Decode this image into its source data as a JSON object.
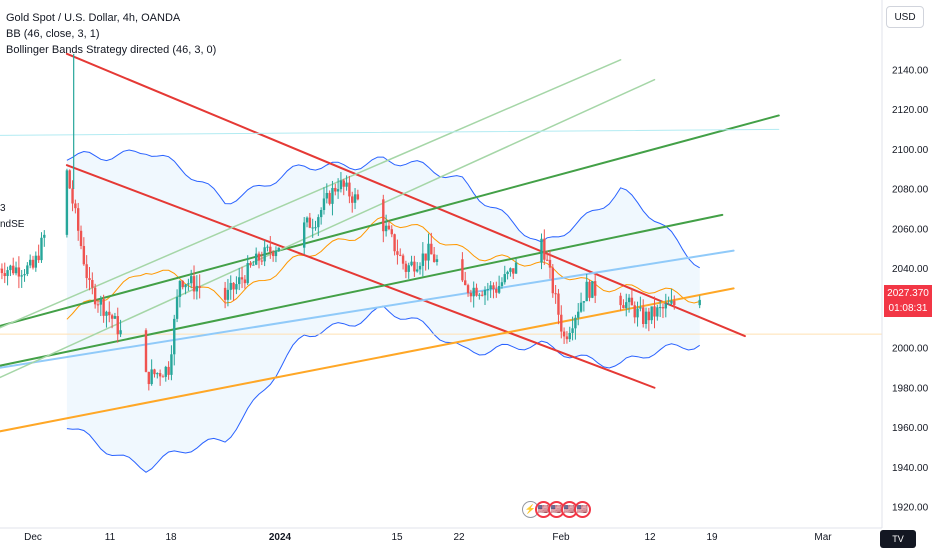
{
  "legend": {
    "symbol": "Gold Spot / U.S. Dollar, 4h, OANDA",
    "bb": "BB (46, close, 3, 1)",
    "strategy": "Bollinger Bands Strategy directed (46, 3, 0)",
    "cut_label_1": "3",
    "cut_label_2": "ndSE"
  },
  "currency_button": "USD",
  "last_price": {
    "value": "2027.370",
    "countdown": "01:08:31",
    "color": "#f23645"
  },
  "events": [
    "⚡",
    "🇺🇸",
    "🇺🇸",
    "🇺🇸",
    "🇺🇸"
  ],
  "colors": {
    "candle_up": "#26a69a",
    "candle_down": "#ef5350",
    "bb_band": "#2962ff",
    "bb_fill": "#e3f2fd",
    "bb_basis": "#ff9800",
    "trend_red": "#e53935",
    "trend_green": "#43a047",
    "trend_light_green": "#a5d6a7",
    "trend_orange": "#ffa726",
    "trend_blue": "#90caf9",
    "trend_cyan": "#b2ebf2",
    "horizontal": "#ffe0b2"
  },
  "chart_data": {
    "type": "candlestick",
    "symbol": "XAUUSD",
    "timeframe": "4h",
    "y_ticks": [
      1920,
      1940,
      1960,
      1980,
      2000,
      2020,
      2040,
      2060,
      2080,
      2100,
      2120,
      2140
    ],
    "ylim": [
      1912,
      2160
    ],
    "x_labels": [
      "Dec",
      "11",
      "18",
      "2024",
      "15",
      "22",
      "Feb",
      "12",
      "19",
      "Mar"
    ],
    "last_price": 2027.37,
    "close_path": [
      {
        "date": "Dec 1",
        "price": 2040
      },
      {
        "date": "Dec 4",
        "price": 2088
      },
      {
        "date": "Dec 6",
        "price": 2030
      },
      {
        "date": "Dec 8",
        "price": 2015
      },
      {
        "date": "Dec 11",
        "price": 1985
      },
      {
        "date": "Dec 13",
        "price": 1990
      },
      {
        "date": "Dec 14",
        "price": 2035
      },
      {
        "date": "Dec 18",
        "price": 2025
      },
      {
        "date": "Dec 21",
        "price": 2045
      },
      {
        "date": "Dec 26",
        "price": 2065
      },
      {
        "date": "Dec 28",
        "price": 2083
      },
      {
        "date": "2024",
        "price": 2062
      },
      {
        "date": "Jan 3",
        "price": 2040
      },
      {
        "date": "Jan 5",
        "price": 2048
      },
      {
        "date": "Jan 8",
        "price": 2030
      },
      {
        "date": "Jan 11",
        "price": 2030
      },
      {
        "date": "Jan 15",
        "price": 2055
      },
      {
        "date": "Jan 17",
        "price": 2005
      },
      {
        "date": "Jan 19",
        "price": 2030
      },
      {
        "date": "Jan 22",
        "price": 2025
      },
      {
        "date": "Jan 24",
        "price": 2015
      },
      {
        "date": "Jan 26",
        "price": 2020
      },
      {
        "date": "Jan 29",
        "price": 2027.37
      }
    ],
    "bollinger": {
      "length": 46,
      "upper": [
        {
          "date": "Dec 4",
          "price": 2095
        },
        {
          "date": "Dec 11",
          "price": 2100
        },
        {
          "date": "Dec 18",
          "price": 2075
        },
        {
          "date": "Dec 25",
          "price": 2090
        },
        {
          "date": "Jan 1",
          "price": 2095
        },
        {
          "date": "Jan 8",
          "price": 2085
        },
        {
          "date": "Jan 15",
          "price": 2050
        },
        {
          "date": "Jan 22",
          "price": 2080
        },
        {
          "date": "Jan 29",
          "price": 2042
        }
      ],
      "basis": [
        {
          "date": "Dec 4",
          "price": 2015
        },
        {
          "date": "Dec 11",
          "price": 2040
        },
        {
          "date": "Dec 18",
          "price": 2025
        },
        {
          "date": "Dec 25",
          "price": 2045
        },
        {
          "date": "Jan 1",
          "price": 2065
        },
        {
          "date": "Jan 8",
          "price": 2050
        },
        {
          "date": "Jan 15",
          "price": 2040
        },
        {
          "date": "Jan 22",
          "price": 2030
        },
        {
          "date": "Jan 29",
          "price": 2025
        }
      ],
      "lower": [
        {
          "date": "Dec 4",
          "price": 1960
        },
        {
          "date": "Dec 11",
          "price": 1940
        },
        {
          "date": "Dec 18",
          "price": 1955
        },
        {
          "date": "Dec 25",
          "price": 2005
        },
        {
          "date": "Jan 1",
          "price": 2020
        },
        {
          "date": "Jan 8",
          "price": 2000
        },
        {
          "date": "Jan 15",
          "price": 2000
        },
        {
          "date": "Jan 22",
          "price": 1992
        },
        {
          "date": "Jan 29",
          "price": 2003
        }
      ]
    },
    "trendlines": [
      {
        "color": "red",
        "from": {
          "date": "Dec 4",
          "price": 2148
        },
        "to": {
          "date": "Feb 2",
          "price": 2006
        }
      },
      {
        "color": "red",
        "from": {
          "date": "Dec 4",
          "price": 2092
        },
        "to": {
          "date": "Jan 25",
          "price": 1980
        }
      },
      {
        "color": "green",
        "from": {
          "date": "Nov 28",
          "price": 2011
        },
        "to": {
          "date": "Feb 5",
          "price": 2117
        }
      },
      {
        "color": "green",
        "from": {
          "date": "Nov 28",
          "price": 1991
        },
        "to": {
          "date": "Jan 31",
          "price": 2067
        }
      },
      {
        "color": "orange",
        "from": {
          "date": "Nov 28",
          "price": 1958
        },
        "to": {
          "date": "Feb 1",
          "price": 2030
        }
      },
      {
        "color": "light-blue",
        "from": {
          "date": "Nov 28",
          "price": 1990
        },
        "to": {
          "date": "Feb 1",
          "price": 2049
        }
      },
      {
        "color": "light-green",
        "from": {
          "date": "Nov 28",
          "price": 2010
        },
        "to": {
          "date": "Jan 22",
          "price": 2145
        }
      },
      {
        "color": "light-green",
        "from": {
          "date": "Nov 28",
          "price": 1985
        },
        "to": {
          "date": "Jan 25",
          "price": 2135
        }
      },
      {
        "color": "cyan",
        "from": {
          "date": "Nov 28",
          "price": 2107
        },
        "to": {
          "date": "Feb 5",
          "price": 2110
        }
      }
    ],
    "horizontal_lines": [
      {
        "price": 2007
      }
    ]
  }
}
